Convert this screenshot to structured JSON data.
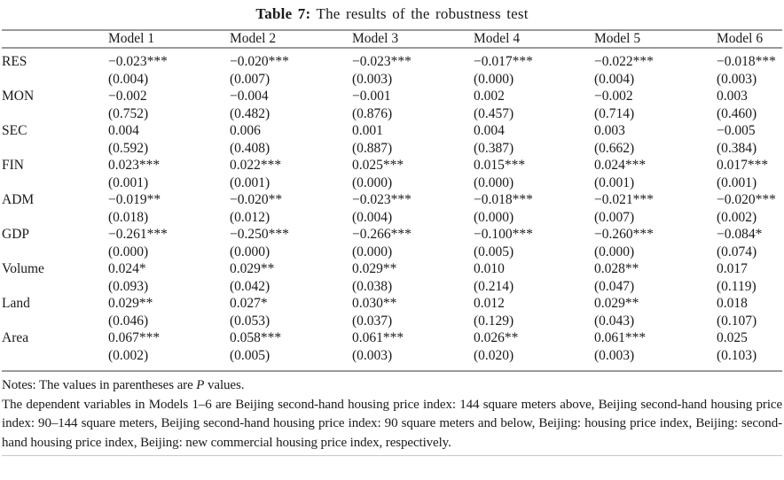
{
  "title": {
    "label": "Table 7:",
    "text": " The results of the robustness test"
  },
  "table": {
    "column_headers": [
      "",
      "Model 1",
      "Model 2",
      "Model 3",
      "Model 4",
      "Model 5",
      "Model 6"
    ],
    "rows": [
      {
        "variable": "RES",
        "coefficients": [
          "−0.023***",
          "−0.020***",
          "−0.023***",
          "−0.017***",
          "−0.022***",
          "−0.018***"
        ],
        "p_values": [
          "(0.004)",
          "(0.007)",
          "(0.003)",
          "(0.000)",
          "(0.004)",
          "(0.003)"
        ]
      },
      {
        "variable": "MON",
        "coefficients": [
          "−0.002",
          "−0.004",
          "−0.001",
          "0.002",
          "−0.002",
          "0.003"
        ],
        "p_values": [
          "(0.752)",
          "(0.482)",
          "(0.876)",
          "(0.457)",
          "(0.714)",
          "(0.460)"
        ]
      },
      {
        "variable": "SEC",
        "coefficients": [
          "0.004",
          "0.006",
          "0.001",
          "0.004",
          "0.003",
          "−0.005"
        ],
        "p_values": [
          "(0.592)",
          "(0.408)",
          "(0.887)",
          "(0.387)",
          "(0.662)",
          "(0.384)"
        ]
      },
      {
        "variable": "FIN",
        "coefficients": [
          "0.023***",
          "0.022***",
          "0.025***",
          "0.015***",
          "0.024***",
          "0.017***"
        ],
        "p_values": [
          "(0.001)",
          "(0.001)",
          "(0.000)",
          "(0.000)",
          "(0.001)",
          "(0.001)"
        ]
      },
      {
        "variable": "ADM",
        "coefficients": [
          "−0.019**",
          "−0.020**",
          "−0.023***",
          "−0.018***",
          "−0.021***",
          "−0.020***"
        ],
        "p_values": [
          "(0.018)",
          "(0.012)",
          "(0.004)",
          "(0.000)",
          "(0.007)",
          "(0.002)"
        ]
      },
      {
        "variable": "GDP",
        "coefficients": [
          "−0.261***",
          "−0.250***",
          "−0.266***",
          "−0.100***",
          "−0.260***",
          "−0.084*"
        ],
        "p_values": [
          "(0.000)",
          "(0.000)",
          "(0.000)",
          "(0.005)",
          "(0.000)",
          "(0.074)"
        ]
      },
      {
        "variable": "Volume",
        "coefficients": [
          "0.024*",
          "0.029**",
          "0.029**",
          "0.010",
          "0.028**",
          "0.017"
        ],
        "p_values": [
          "(0.093)",
          "(0.042)",
          "(0.038)",
          "(0.214)",
          "(0.047)",
          "(0.119)"
        ]
      },
      {
        "variable": "Land",
        "coefficients": [
          "0.029**",
          "0.027*",
          "0.030**",
          "0.012",
          "0.029**",
          "0.018"
        ],
        "p_values": [
          "(0.046)",
          "(0.053)",
          "(0.037)",
          "(0.129)",
          "(0.043)",
          "(0.107)"
        ]
      },
      {
        "variable": "Area",
        "coefficients": [
          "0.067***",
          "0.058***",
          "0.061***",
          "0.026**",
          "0.061***",
          "0.025"
        ],
        "p_values": [
          "(0.002)",
          "(0.005)",
          "(0.003)",
          "(0.020)",
          "(0.003)",
          "(0.103)"
        ]
      }
    ]
  },
  "notes": {
    "line1_prefix": "Notes: The values in parentheses are ",
    "line1_italic": "P",
    "line1_suffix": " values.",
    "paragraph": "The dependent variables in Models 1–6 are Beijing second-hand housing price index: 144 square meters above, Beijing second-hand housing price index: 90–144 square meters, Beijing second-hand housing price index: 90 square meters and below, Beijing: housing price index, Beijing: second-hand housing price index, Beijing: new commercial housing price index, respectively."
  }
}
